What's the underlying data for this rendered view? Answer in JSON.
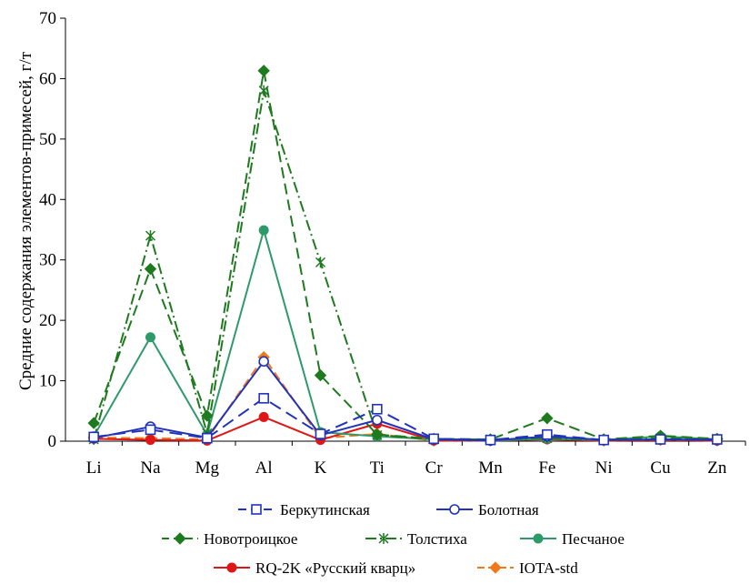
{
  "chart_data": {
    "type": "line",
    "ylabel": "Средние содержания элементов-примесей, г/т",
    "xlabel": "",
    "ylim": [
      0,
      70
    ],
    "yticks": [
      "0",
      "10",
      "20",
      "30",
      "40",
      "50",
      "60",
      "70"
    ],
    "categories": [
      "Li",
      "Na",
      "Mg",
      "Al",
      "K",
      "Ti",
      "Cr",
      "Mn",
      "Fe",
      "Ni",
      "Cu",
      "Zn"
    ],
    "legend_position": "bottom",
    "grid": false,
    "series": [
      {
        "name": "Беркутинская",
        "color": "#2233bb",
        "dash": "14,7",
        "marker": "square-open",
        "values": [
          0.7,
          1.9,
          0.5,
          7.1,
          1.2,
          5.3,
          0.4,
          0.2,
          1.1,
          0.2,
          0.3,
          0.3
        ]
      },
      {
        "name": "Болотная",
        "color": "#2233bb",
        "dash": "",
        "marker": "circle-open",
        "values": [
          0.5,
          2.4,
          0.6,
          13.2,
          1.0,
          3.5,
          0.3,
          0.1,
          0.8,
          0.2,
          0.3,
          0.2
        ]
      },
      {
        "name": "Новотроицкое",
        "color": "#1e7a1e",
        "dash": "12,6",
        "marker": "diamond",
        "values": [
          3.0,
          28.5,
          4.2,
          61.3,
          10.9,
          1.1,
          0.4,
          0.3,
          3.8,
          0.3,
          0.9,
          0.4
        ]
      },
      {
        "name": "Толстиха",
        "color": "#1e7a1e",
        "dash": "12,4,2,4",
        "marker": "asterisk",
        "values": [
          0.3,
          34.0,
          1.3,
          58.0,
          29.6,
          1.0,
          0.3,
          0.3,
          0.5,
          0.2,
          0.5,
          0.3
        ]
      },
      {
        "name": "Песчаное",
        "color": "#2e9a6a",
        "dash": "",
        "marker": "circle",
        "values": [
          0.8,
          17.2,
          1.1,
          34.9,
          1.5,
          0.8,
          0.3,
          0.1,
          0.4,
          0.2,
          0.8,
          0.3
        ]
      },
      {
        "name": "RQ-2K «Русский кварц»",
        "color": "#e01515",
        "dash": "",
        "marker": "circle",
        "values": [
          0.4,
          0.2,
          0.1,
          4.0,
          0.2,
          2.9,
          0.1,
          0.1,
          0.3,
          0.1,
          0.2,
          0.1
        ]
      },
      {
        "name": "IOTA-std",
        "color": "#f07a1a",
        "dash": "10,5",
        "marker": "diamond",
        "values": [
          0.6,
          0.5,
          0.3,
          13.9,
          0.5,
          1.2,
          0.1,
          0.1,
          0.4,
          0.1,
          0.2,
          0.1
        ]
      }
    ]
  }
}
